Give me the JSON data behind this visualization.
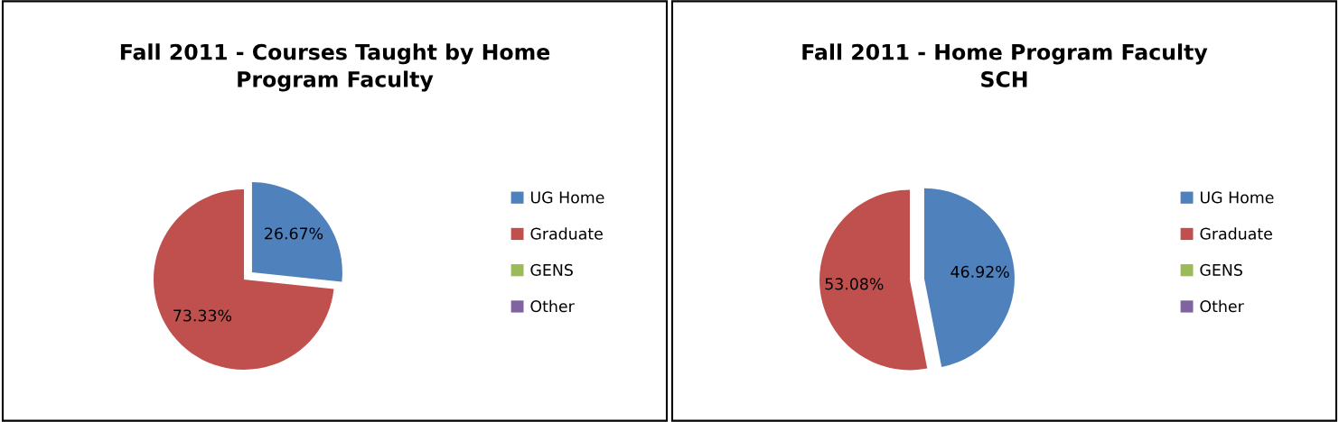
{
  "chart_data": [
    {
      "type": "pie",
      "title": "Fall 2011 - Courses Taught by Home\nProgram Faculty",
      "categories": [
        "UG Home",
        "Graduate",
        "GENS",
        "Other"
      ],
      "values": [
        26.67,
        73.33,
        0,
        0
      ],
      "colors": [
        "#4f81bd",
        "#c0504d",
        "#9bbb59",
        "#8064a2"
      ],
      "value_labels": [
        "26.67%",
        "73.33%",
        null,
        null
      ],
      "legend": "right"
    },
    {
      "type": "pie",
      "title": "Fall 2011 - Home Program Faculty\nSCH",
      "categories": [
        "UG Home",
        "Graduate",
        "GENS",
        "Other"
      ],
      "values": [
        46.92,
        53.08,
        0,
        0
      ],
      "colors": [
        "#4f81bd",
        "#c0504d",
        "#9bbb59",
        "#8064a2"
      ],
      "value_labels": [
        "46.92%",
        "53.08%",
        null,
        null
      ],
      "legend": "right"
    }
  ]
}
